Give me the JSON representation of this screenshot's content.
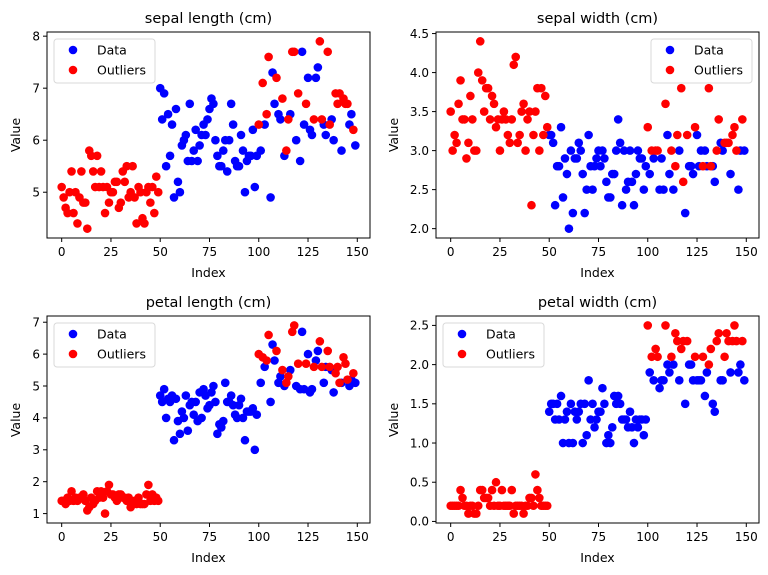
{
  "chart_data": [
    {
      "type": "scatter",
      "title": "sepal length (cm)",
      "xlabel": "Index",
      "ylabel": "Value",
      "xlim": [
        -7.45,
        156.45
      ],
      "ylim": [
        4.12,
        8.08
      ],
      "xticks": [
        0,
        25,
        50,
        75,
        100,
        125,
        150
      ],
      "yticks": [
        5,
        6,
        7,
        8
      ],
      "ytick_labels": [
        "5",
        "6",
        "7",
        "8"
      ],
      "legend": {
        "position": "upper-left",
        "entries": [
          "Data",
          "Outliers"
        ]
      },
      "grid": false,
      "feature": "sepal_length"
    },
    {
      "type": "scatter",
      "title": "sepal width (cm)",
      "xlabel": "Index",
      "ylabel": "Value",
      "xlim": [
        -7.45,
        156.45
      ],
      "ylim": [
        1.88,
        4.52
      ],
      "xticks": [
        0,
        25,
        50,
        75,
        100,
        125,
        150
      ],
      "yticks": [
        2.0,
        2.5,
        3.0,
        3.5,
        4.0,
        4.5
      ],
      "ytick_labels": [
        "2.0",
        "2.5",
        "3.0",
        "3.5",
        "4.0",
        "4.5"
      ],
      "legend": {
        "position": "upper-right",
        "entries": [
          "Data",
          "Outliers"
        ]
      },
      "grid": false,
      "feature": "sepal_width"
    },
    {
      "type": "scatter",
      "title": "petal length (cm)",
      "xlabel": "Index",
      "ylabel": "Value",
      "xlim": [
        -7.45,
        156.45
      ],
      "ylim": [
        0.705,
        7.195
      ],
      "xticks": [
        0,
        25,
        50,
        75,
        100,
        125,
        150
      ],
      "yticks": [
        1,
        2,
        3,
        4,
        5,
        6,
        7
      ],
      "ytick_labels": [
        "1",
        "2",
        "3",
        "4",
        "5",
        "6",
        "7"
      ],
      "legend": {
        "position": "upper-left",
        "entries": [
          "Data",
          "Outliers"
        ]
      },
      "grid": false,
      "feature": "petal_length"
    },
    {
      "type": "scatter",
      "title": "petal width (cm)",
      "xlabel": "Index",
      "ylabel": "Value",
      "xlim": [
        -7.45,
        156.45
      ],
      "ylim": [
        -0.02,
        2.62
      ],
      "xticks": [
        0,
        25,
        50,
        75,
        100,
        125,
        150
      ],
      "yticks": [
        0.0,
        0.5,
        1.0,
        1.5,
        2.0,
        2.5
      ],
      "ytick_labels": [
        "0.0",
        "0.5",
        "1.0",
        "1.5",
        "2.0",
        "2.5"
      ],
      "legend": {
        "position": "upper-left",
        "entries": [
          "Data",
          "Outliers"
        ]
      },
      "grid": false,
      "feature": "petal_width"
    }
  ],
  "series_colors": {
    "Data": "#0000ff",
    "Outliers": "#ff0000"
  },
  "outlier_indices": [
    0,
    1,
    2,
    3,
    4,
    5,
    6,
    7,
    8,
    9,
    10,
    11,
    12,
    13,
    14,
    15,
    16,
    17,
    18,
    19,
    20,
    21,
    22,
    23,
    24,
    25,
    26,
    27,
    28,
    29,
    30,
    31,
    32,
    33,
    34,
    35,
    36,
    37,
    38,
    39,
    40,
    41,
    42,
    43,
    44,
    45,
    46,
    47,
    48,
    49,
    100,
    102,
    104,
    105,
    109,
    112,
    114,
    115,
    117,
    118,
    120,
    124,
    128,
    131,
    132,
    135,
    136,
    139,
    140,
    141,
    143,
    144,
    145,
    148
  ],
  "values": {
    "sepal_length": [
      5.1,
      4.9,
      4.7,
      4.6,
      5.0,
      5.4,
      4.6,
      5.0,
      4.4,
      4.9,
      5.4,
      4.8,
      4.8,
      4.3,
      5.8,
      5.7,
      5.4,
      5.1,
      5.7,
      5.1,
      5.4,
      5.1,
      4.6,
      5.1,
      4.8,
      5.0,
      5.0,
      5.2,
      5.2,
      4.7,
      4.8,
      5.4,
      5.2,
      5.5,
      4.9,
      5.0,
      5.5,
      4.9,
      4.4,
      5.1,
      5.0,
      4.5,
      4.4,
      5.0,
      5.1,
      4.8,
      5.1,
      4.6,
      5.3,
      5.0,
      7.0,
      6.4,
      6.9,
      5.5,
      6.5,
      5.7,
      6.3,
      4.9,
      6.6,
      5.2,
      5.0,
      5.9,
      6.0,
      6.1,
      5.6,
      6.7,
      5.6,
      5.8,
      6.2,
      5.6,
      5.9,
      6.1,
      6.3,
      6.1,
      6.4,
      6.6,
      6.8,
      6.7,
      6.0,
      5.7,
      5.5,
      5.5,
      5.8,
      6.0,
      5.4,
      6.0,
      6.7,
      6.3,
      5.6,
      5.5,
      5.5,
      6.1,
      5.8,
      5.0,
      5.6,
      5.7,
      5.7,
      6.2,
      5.1,
      5.7,
      6.3,
      5.8,
      7.1,
      6.3,
      6.5,
      7.6,
      4.9,
      7.3,
      6.7,
      7.2,
      6.5,
      6.4,
      6.8,
      5.7,
      5.8,
      6.4,
      6.5,
      7.7,
      7.7,
      6.0,
      6.9,
      5.6,
      7.7,
      6.3,
      6.7,
      7.2,
      6.2,
      6.1,
      6.4,
      7.2,
      7.4,
      7.9,
      6.4,
      6.3,
      6.1,
      7.7,
      6.3,
      6.4,
      6.0,
      6.9,
      6.7,
      6.9,
      5.8,
      6.8,
      6.7,
      6.7,
      6.3,
      6.5,
      6.2,
      5.9
    ],
    "sepal_width": [
      3.5,
      3.0,
      3.2,
      3.1,
      3.6,
      3.9,
      3.4,
      3.4,
      2.9,
      3.1,
      3.7,
      3.4,
      3.0,
      3.0,
      4.0,
      4.4,
      3.9,
      3.5,
      3.8,
      3.8,
      3.4,
      3.7,
      3.6,
      3.3,
      3.4,
      3.0,
      3.4,
      3.5,
      3.4,
      3.2,
      3.1,
      3.4,
      4.1,
      4.2,
      3.1,
      3.2,
      3.5,
      3.6,
      3.0,
      3.4,
      3.5,
      2.3,
      3.2,
      3.5,
      3.8,
      3.0,
      3.8,
      3.2,
      3.7,
      3.3,
      3.2,
      3.2,
      3.1,
      2.3,
      2.8,
      2.8,
      3.3,
      2.4,
      2.9,
      2.7,
      2.0,
      3.0,
      2.2,
      2.9,
      2.9,
      3.1,
      3.0,
      2.7,
      2.2,
      2.5,
      3.2,
      2.8,
      2.5,
      2.8,
      2.9,
      3.0,
      2.8,
      3.0,
      2.9,
      2.6,
      2.4,
      2.4,
      2.7,
      2.7,
      3.0,
      3.4,
      3.1,
      2.3,
      3.0,
      2.5,
      2.6,
      3.0,
      2.6,
      2.3,
      2.7,
      3.0,
      2.9,
      2.9,
      2.5,
      2.8,
      3.3,
      2.7,
      3.0,
      2.9,
      3.0,
      3.0,
      2.5,
      2.9,
      2.5,
      3.6,
      3.2,
      2.7,
      3.0,
      2.5,
      2.8,
      3.2,
      3.0,
      3.8,
      2.6,
      2.2,
      3.2,
      2.8,
      2.8,
      2.7,
      3.3,
      3.2,
      2.8,
      3.0,
      2.8,
      3.0,
      2.8,
      3.8,
      2.8,
      2.8,
      2.6,
      3.0,
      3.4,
      3.1,
      3.0,
      3.1,
      3.1,
      3.1,
      2.7,
      3.2,
      3.3,
      3.0,
      2.5,
      3.0,
      3.4,
      3.0
    ],
    "petal_length": [
      1.4,
      1.4,
      1.3,
      1.5,
      1.4,
      1.7,
      1.4,
      1.5,
      1.4,
      1.5,
      1.5,
      1.6,
      1.4,
      1.1,
      1.2,
      1.5,
      1.3,
      1.4,
      1.7,
      1.5,
      1.7,
      1.5,
      1.0,
      1.7,
      1.9,
      1.6,
      1.6,
      1.5,
      1.4,
      1.6,
      1.6,
      1.5,
      1.5,
      1.4,
      1.5,
      1.2,
      1.3,
      1.4,
      1.3,
      1.5,
      1.3,
      1.3,
      1.3,
      1.6,
      1.9,
      1.4,
      1.6,
      1.4,
      1.5,
      1.4,
      4.7,
      4.5,
      4.9,
      4.0,
      4.6,
      4.5,
      4.7,
      3.3,
      4.6,
      3.9,
      3.5,
      4.2,
      4.0,
      4.7,
      3.6,
      4.4,
      4.5,
      4.1,
      4.5,
      3.9,
      4.8,
      4.0,
      4.9,
      4.7,
      4.3,
      4.4,
      4.8,
      5.0,
      4.5,
      3.5,
      3.8,
      3.7,
      3.9,
      5.1,
      4.5,
      4.5,
      4.7,
      4.4,
      4.1,
      4.0,
      4.4,
      4.6,
      4.0,
      3.3,
      4.2,
      4.2,
      4.2,
      4.3,
      3.0,
      4.1,
      6.0,
      5.1,
      5.9,
      5.6,
      5.8,
      6.6,
      4.5,
      6.3,
      5.8,
      6.1,
      5.1,
      5.3,
      5.5,
      5.0,
      5.1,
      5.3,
      5.5,
      6.7,
      6.9,
      5.0,
      5.7,
      4.9,
      6.7,
      4.9,
      5.7,
      6.0,
      4.8,
      4.9,
      5.6,
      5.8,
      6.1,
      6.4,
      5.6,
      5.1,
      5.6,
      6.1,
      5.6,
      5.5,
      4.8,
      5.4,
      5.6,
      5.1,
      5.1,
      5.9,
      5.7,
      5.2,
      5.0,
      5.2,
      5.4,
      5.1
    ],
    "petal_width": [
      0.2,
      0.2,
      0.2,
      0.2,
      0.2,
      0.4,
      0.3,
      0.2,
      0.2,
      0.1,
      0.2,
      0.2,
      0.1,
      0.1,
      0.2,
      0.4,
      0.4,
      0.3,
      0.3,
      0.3,
      0.2,
      0.4,
      0.2,
      0.5,
      0.2,
      0.2,
      0.4,
      0.2,
      0.2,
      0.2,
      0.2,
      0.4,
      0.1,
      0.2,
      0.2,
      0.2,
      0.2,
      0.1,
      0.2,
      0.2,
      0.3,
      0.3,
      0.2,
      0.6,
      0.4,
      0.3,
      0.2,
      0.2,
      0.2,
      0.2,
      1.4,
      1.5,
      1.5,
      1.3,
      1.5,
      1.3,
      1.6,
      1.0,
      1.3,
      1.4,
      1.0,
      1.5,
      1.0,
      1.4,
      1.3,
      1.4,
      1.5,
      1.0,
      1.5,
      1.1,
      1.8,
      1.3,
      1.5,
      1.2,
      1.3,
      1.4,
      1.4,
      1.7,
      1.5,
      1.0,
      1.1,
      1.0,
      1.2,
      1.6,
      1.5,
      1.6,
      1.5,
      1.3,
      1.3,
      1.3,
      1.2,
      1.4,
      1.2,
      1.0,
      1.3,
      1.2,
      1.3,
      1.3,
      1.1,
      1.3,
      2.5,
      1.9,
      2.1,
      1.8,
      2.2,
      2.1,
      1.7,
      1.8,
      1.8,
      2.5,
      2.0,
      1.9,
      2.1,
      2.0,
      2.4,
      2.3,
      1.8,
      2.2,
      2.3,
      1.5,
      2.3,
      2.0,
      2.0,
      1.8,
      2.1,
      1.8,
      1.8,
      1.8,
      2.1,
      1.6,
      1.9,
      2.0,
      2.2,
      1.5,
      1.4,
      2.3,
      2.4,
      1.8,
      1.8,
      2.1,
      2.4,
      2.3,
      1.9,
      2.3,
      2.5,
      2.3,
      1.9,
      2.0,
      2.3,
      1.8
    ]
  }
}
